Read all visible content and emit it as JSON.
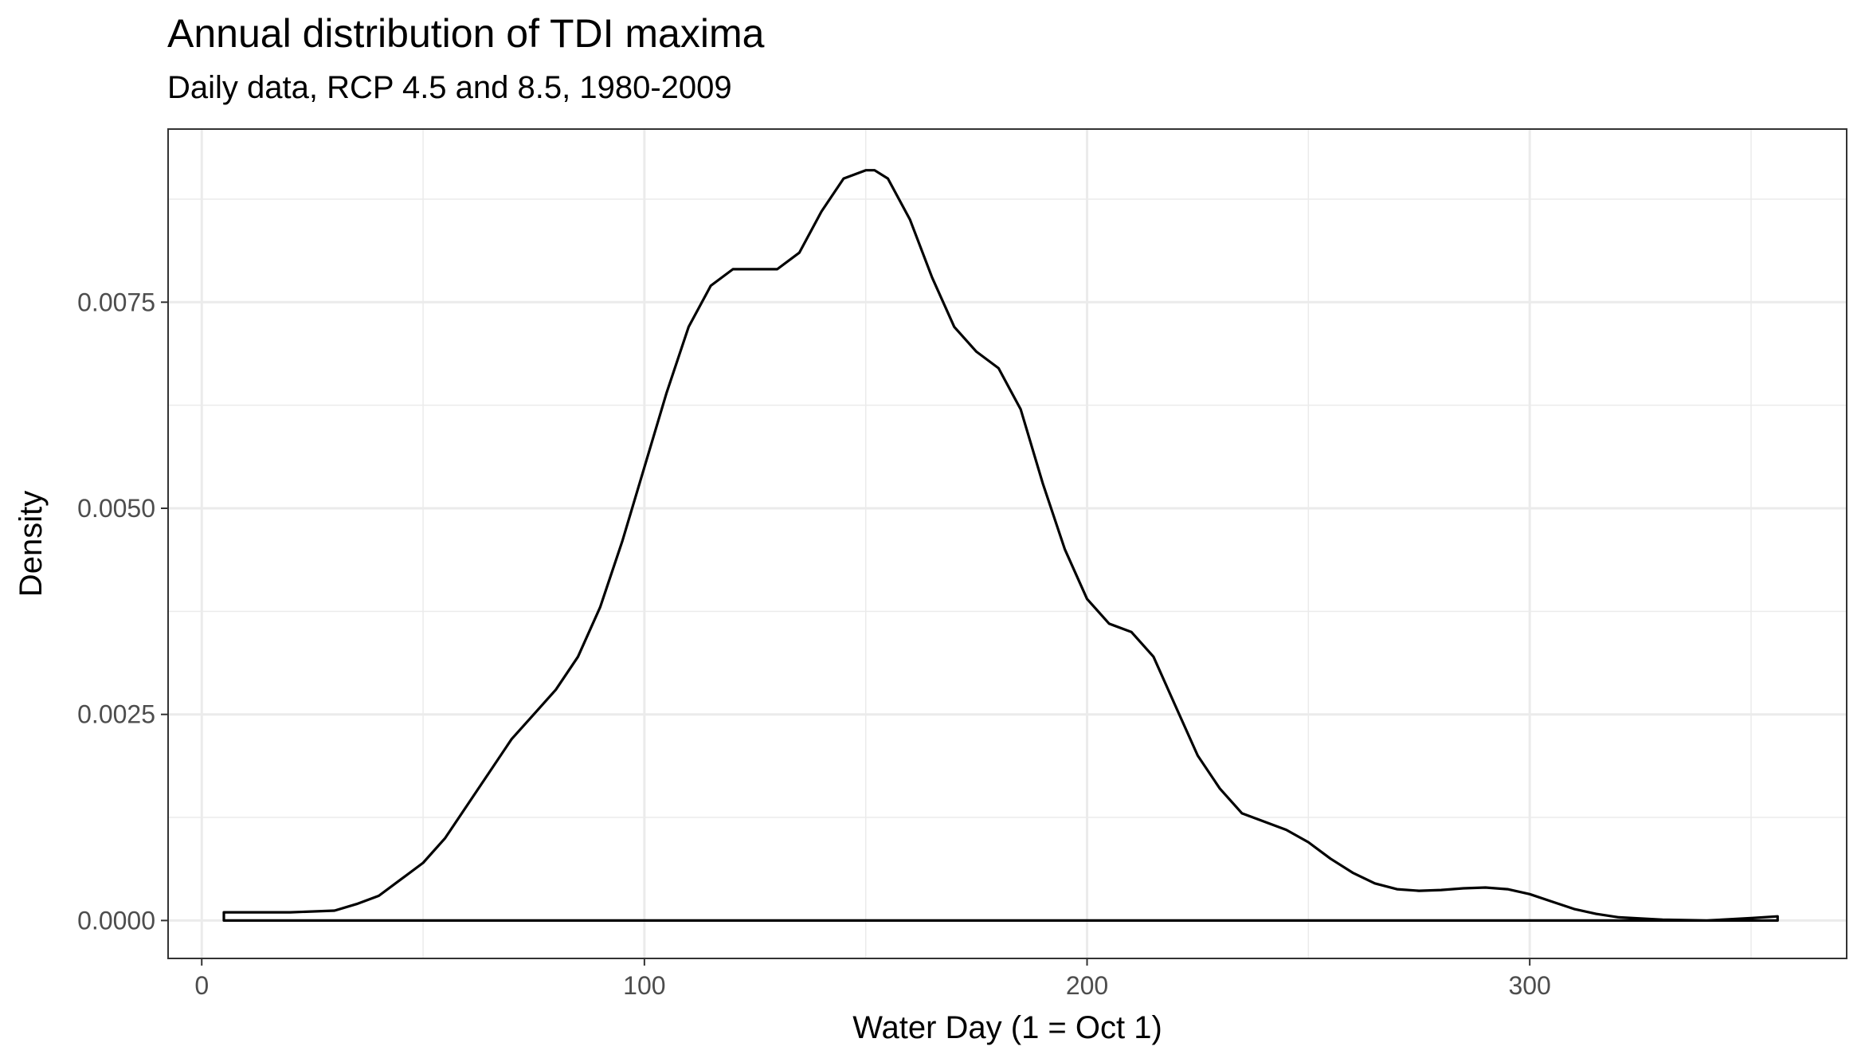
{
  "chart_data": {
    "type": "area",
    "title": "Annual distribution of TDI maxima",
    "subtitle": "Daily data, RCP 4.5 and 8.5, 1980-2009",
    "xlabel": "Water Day (1 = Oct 1)",
    "ylabel": "Density",
    "xlim": [
      -7.6,
      371.6
    ],
    "ylim": [
      -0.00046,
      0.0096
    ],
    "xticks": [
      0,
      100,
      200,
      300
    ],
    "xtick_labels": [
      "0",
      "100",
      "200",
      "300"
    ],
    "yticks": [
      0,
      0.0025,
      0.005,
      0.0075
    ],
    "ytick_labels": [
      "0.0000",
      "0.0025",
      "0.0050",
      "0.0075"
    ],
    "grid": true,
    "fill": "none",
    "line_color": "#000000",
    "series": [
      {
        "x": [
          5,
          10,
          20,
          30,
          35,
          40,
          45,
          50,
          55,
          60,
          65,
          70,
          75,
          80,
          85,
          90,
          95,
          100,
          105,
          110,
          115,
          120,
          125,
          130,
          135,
          140,
          145,
          150,
          152,
          155,
          160,
          165,
          170,
          175,
          180,
          185,
          190,
          195,
          200,
          205,
          210,
          215,
          220,
          225,
          230,
          235,
          240,
          245,
          250,
          255,
          260,
          265,
          270,
          275,
          280,
          285,
          290,
          295,
          300,
          305,
          310,
          315,
          320,
          330,
          340,
          350,
          356
        ],
        "y": [
          0.0001,
          0.0001,
          0.0001,
          0.00012,
          0.0002,
          0.0003,
          0.0005,
          0.0007,
          0.001,
          0.0014,
          0.0018,
          0.0022,
          0.0025,
          0.0028,
          0.0032,
          0.0038,
          0.0046,
          0.0055,
          0.0064,
          0.0072,
          0.0077,
          0.0079,
          0.0079,
          0.0079,
          0.0081,
          0.0086,
          0.009,
          0.0091,
          0.0091,
          0.009,
          0.0085,
          0.0078,
          0.0072,
          0.0069,
          0.0067,
          0.0062,
          0.0053,
          0.0045,
          0.0039,
          0.0036,
          0.0035,
          0.0032,
          0.0026,
          0.002,
          0.0016,
          0.0013,
          0.0012,
          0.0011,
          0.00095,
          0.00075,
          0.00058,
          0.00045,
          0.00038,
          0.00036,
          0.00037,
          0.00039,
          0.0004,
          0.00038,
          0.00032,
          0.00023,
          0.00014,
          8e-05,
          4e-05,
          1e-05,
          0.0,
          3e-05,
          5e-05
        ]
      }
    ]
  }
}
